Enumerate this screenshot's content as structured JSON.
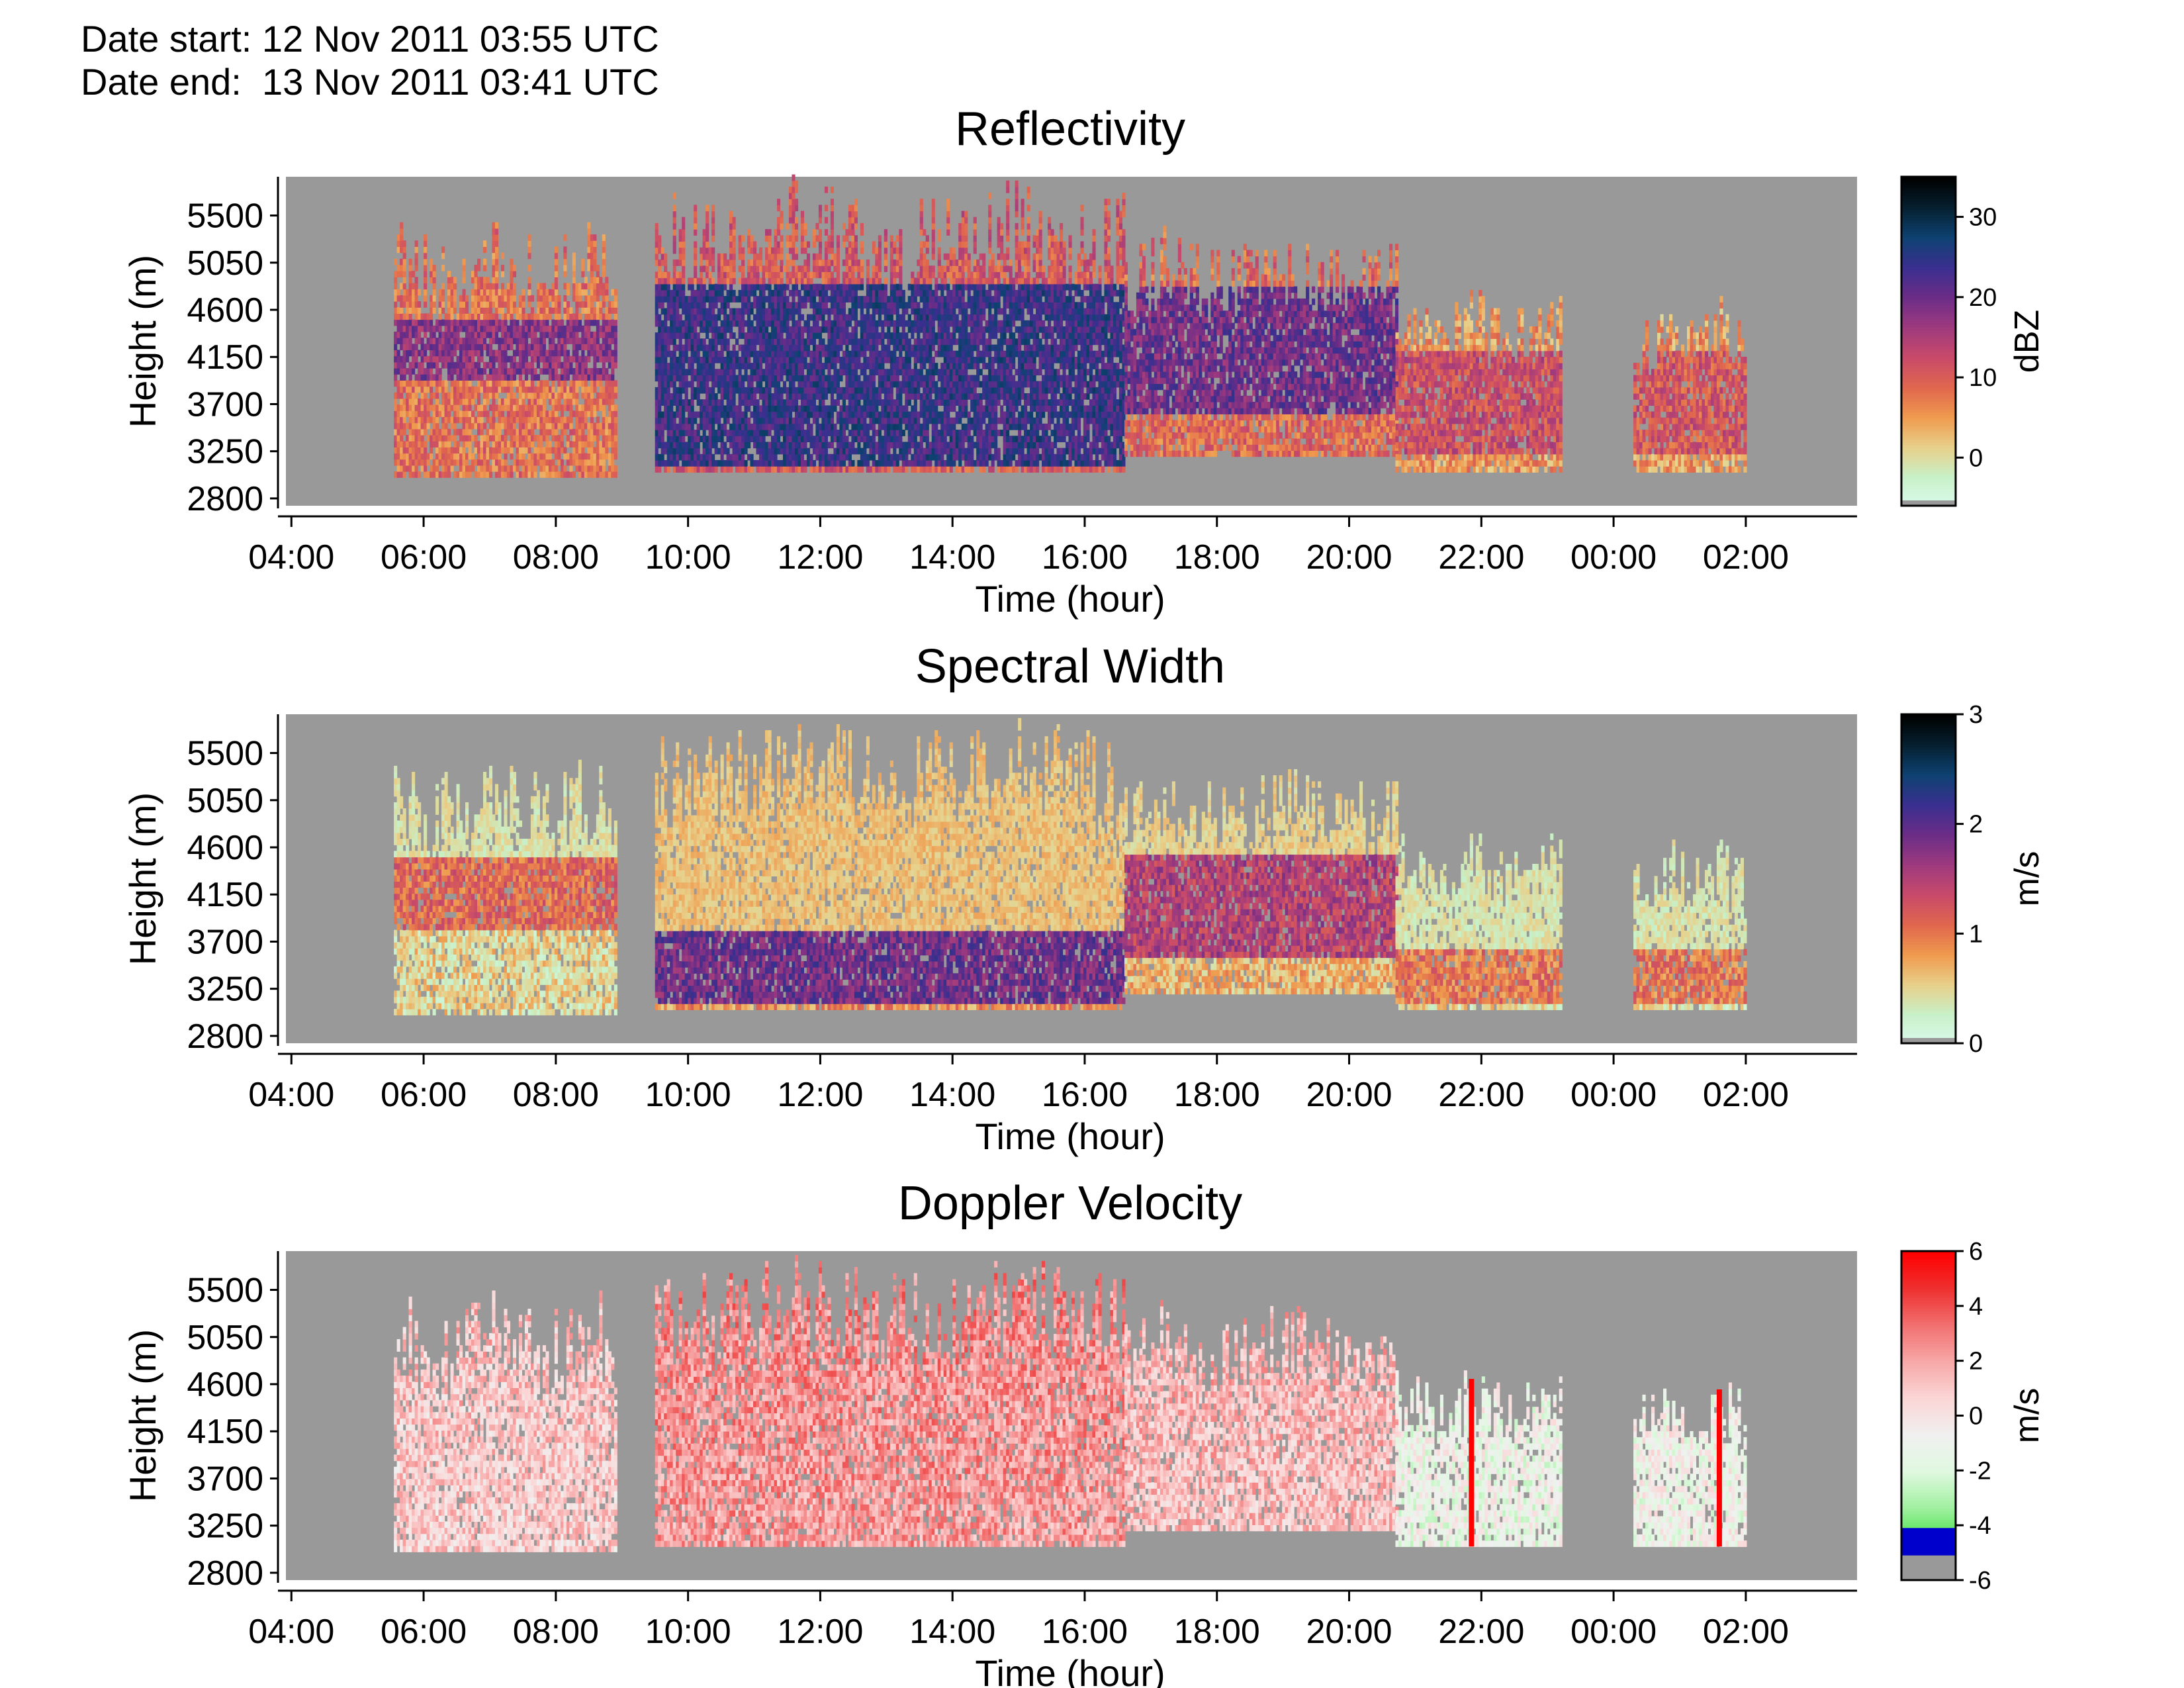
{
  "header": {
    "date_start_label": "Date start:",
    "date_start_value": "12 Nov 2011 03:55 UTC",
    "date_end_label": "Date end:",
    "date_end_value": "13 Nov 2011 03:41 UTC"
  },
  "colors": {
    "no_data": "#999999",
    "reflectivity_scale": [
      "#d9fbeb",
      "#c8f0c8",
      "#e8d08a",
      "#ef9a4e",
      "#e0664e",
      "#c84a6a",
      "#9e3a7e",
      "#6b2d87",
      "#3a2f8f",
      "#0e4272",
      "#062030",
      "#000000"
    ],
    "spectral_width_scale": [
      "#d9fbeb",
      "#c8f0c8",
      "#e8d08a",
      "#ef9a4e",
      "#e0664e",
      "#c84a6a",
      "#9e3a7e",
      "#6b2d87",
      "#3a2f8f",
      "#0e4272",
      "#062030",
      "#000000"
    ],
    "doppler_scale": [
      "#00c000",
      "#40e040",
      "#a0f0a0",
      "#e0f8e0",
      "#f0f0f0",
      "#fbd6d6",
      "#f7a8a8",
      "#f27070",
      "#ee3030",
      "#ff0000"
    ],
    "doppler_low_band": "#0000cc"
  },
  "chart_data": [
    {
      "type": "heatmap",
      "title": "Reflectivity",
      "xlabel": "Time (hour)",
      "ylabel": "Height (m)",
      "x_ticks": [
        "04:00",
        "06:00",
        "08:00",
        "10:00",
        "12:00",
        "14:00",
        "16:00",
        "18:00",
        "20:00",
        "22:00",
        "00:00",
        "02:00"
      ],
      "y_ticks": [
        5500,
        5050,
        4600,
        4150,
        3700,
        3250,
        2800
      ],
      "xlim_hours": [
        3.917,
        27.683
      ],
      "ylim": [
        2730,
        5870
      ],
      "colorbar": {
        "label": "dBZ",
        "ticks": [
          30,
          20,
          10,
          0
        ],
        "range": [
          -6,
          35
        ]
      },
      "echo_regions": [
        {
          "t0": 5.55,
          "t1": 8.9,
          "h0": 3000,
          "h1": 5500,
          "core_h0": 3900,
          "core_h1": 4450,
          "peak": 18
        },
        {
          "t0": 9.5,
          "t1": 16.6,
          "h0": 3050,
          "h1": 5870,
          "core_h0": 3100,
          "core_h1": 4800,
          "peak": 24
        },
        {
          "t0": 16.6,
          "t1": 20.7,
          "h0": 3200,
          "h1": 5400,
          "core_h0": 3600,
          "core_h1": 4800,
          "peak": 20
        },
        {
          "t0": 20.7,
          "t1": 23.2,
          "h0": 3050,
          "h1": 4800,
          "core_h0": 3200,
          "core_h1": 4200,
          "peak": 12
        },
        {
          "t0": 24.3,
          "t1": 26.0,
          "h0": 3050,
          "h1": 4700,
          "core_h0": 3200,
          "core_h1": 4200,
          "peak": 11
        }
      ]
    },
    {
      "type": "heatmap",
      "title": "Spectral Width",
      "xlabel": "Time (hour)",
      "ylabel": "Height (m)",
      "x_ticks": [
        "04:00",
        "06:00",
        "08:00",
        "10:00",
        "12:00",
        "14:00",
        "16:00",
        "18:00",
        "20:00",
        "22:00",
        "00:00",
        "02:00"
      ],
      "y_ticks": [
        5500,
        5050,
        4600,
        4150,
        3700,
        3250,
        2800
      ],
      "xlim_hours": [
        3.917,
        27.683
      ],
      "ylim": [
        2730,
        5870
      ],
      "colorbar": {
        "label": "m/s",
        "ticks": [
          3,
          2,
          1,
          0
        ],
        "range": [
          0,
          3
        ]
      },
      "echo_regions": [
        {
          "t0": 5.55,
          "t1": 8.9,
          "h0": 3000,
          "h1": 5500,
          "core_h0": 3800,
          "core_h1": 4500,
          "peak": 1.1
        },
        {
          "t0": 9.5,
          "t1": 16.6,
          "h0": 3050,
          "h1": 5870,
          "core_h0": 3100,
          "core_h1": 3800,
          "peak": 1.9
        },
        {
          "t0": 16.6,
          "t1": 20.7,
          "h0": 3200,
          "h1": 5400,
          "core_h0": 3500,
          "core_h1": 4500,
          "peak": 1.5
        },
        {
          "t0": 20.7,
          "t1": 23.2,
          "h0": 3050,
          "h1": 4800,
          "core_h0": 3100,
          "core_h1": 3600,
          "peak": 1.0
        },
        {
          "t0": 24.3,
          "t1": 26.0,
          "h0": 3050,
          "h1": 4700,
          "core_h0": 3100,
          "core_h1": 3600,
          "peak": 1.0
        }
      ]
    },
    {
      "type": "heatmap",
      "title": "Doppler Velocity",
      "xlabel": "Time (hour)",
      "ylabel": "Height (m)",
      "x_ticks": [
        "04:00",
        "06:00",
        "08:00",
        "10:00",
        "12:00",
        "14:00",
        "16:00",
        "18:00",
        "20:00",
        "22:00",
        "00:00",
        "02:00"
      ],
      "y_ticks": [
        5500,
        5050,
        4600,
        4150,
        3700,
        3250,
        2800
      ],
      "xlim_hours": [
        3.917,
        27.683
      ],
      "ylim": [
        2730,
        5870
      ],
      "colorbar": {
        "label": "m/s",
        "ticks": [
          6,
          4,
          2,
          0,
          -2,
          -4,
          -6
        ],
        "range": [
          -6,
          6
        ]
      },
      "echo_regions": [
        {
          "t0": 5.55,
          "t1": 8.9,
          "h0": 3000,
          "h1": 5500,
          "mean": 0.8
        },
        {
          "t0": 9.5,
          "t1": 16.6,
          "h0": 3050,
          "h1": 5870,
          "mean": 2.2
        },
        {
          "t0": 16.6,
          "t1": 20.7,
          "h0": 3200,
          "h1": 5400,
          "mean": 1.2
        },
        {
          "t0": 20.7,
          "t1": 23.2,
          "h0": 3050,
          "h1": 4800,
          "mean": -1.2
        },
        {
          "t0": 24.3,
          "t1": 26.0,
          "h0": 3050,
          "h1": 4700,
          "mean": -1.0
        }
      ],
      "spikes": [
        {
          "t": 21.85,
          "h0": 3050,
          "h1": 4650,
          "value": 6
        },
        {
          "t": 25.6,
          "h0": 3050,
          "h1": 4550,
          "value": 6
        }
      ]
    }
  ]
}
